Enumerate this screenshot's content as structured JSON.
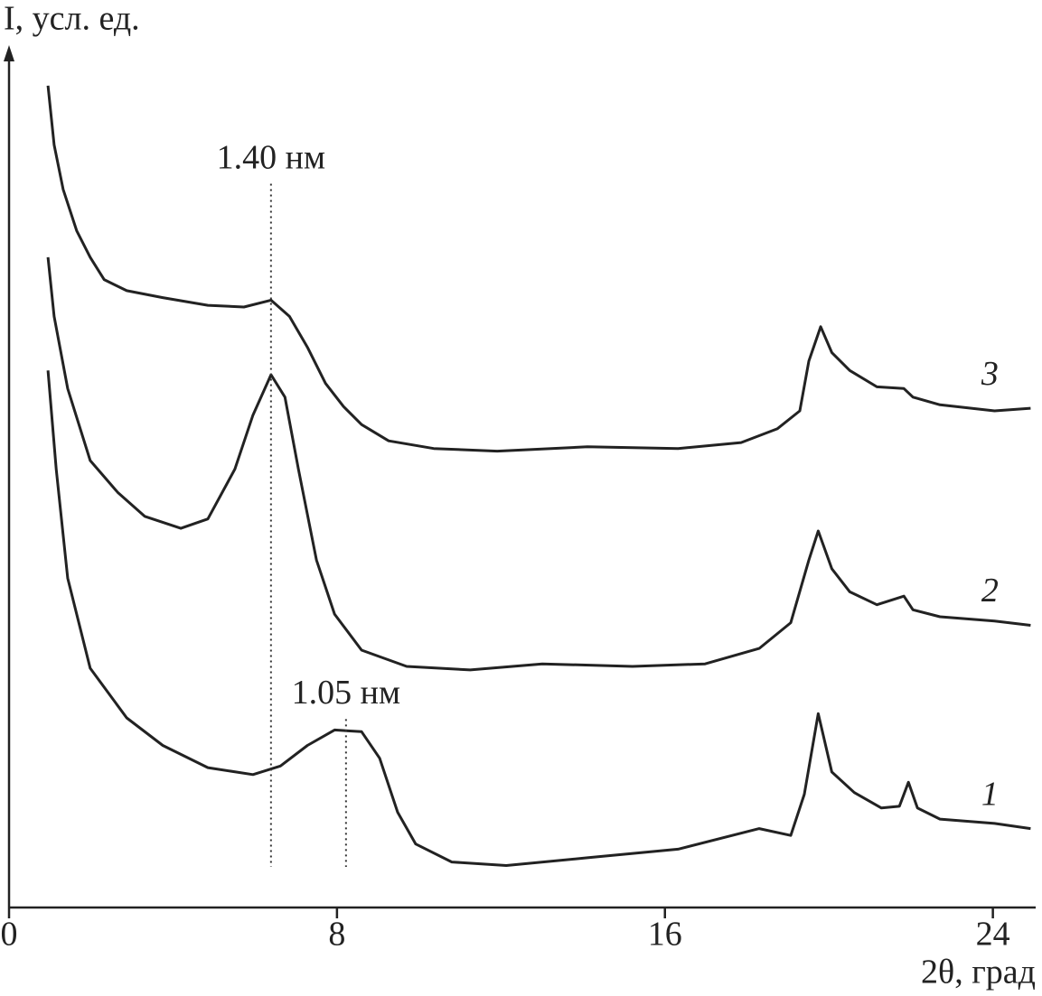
{
  "chart_data": {
    "type": "line",
    "x_label": "2θ, град",
    "y_label": "I, усл. ед.",
    "xlim": [
      0,
      25
    ],
    "xticks": [
      0,
      8,
      16,
      24
    ],
    "ylim": [
      0,
      100
    ],
    "series": [
      {
        "name": "3",
        "color": "#222222",
        "x": [
          0.95,
          1.1,
          1.32,
          1.65,
          1.98,
          2.32,
          2.87,
          3.75,
          4.85,
          5.73,
          6.39,
          6.84,
          7.28,
          7.72,
          8.16,
          8.6,
          9.26,
          10.36,
          11.91,
          14.11,
          16.32,
          17.86,
          18.74,
          19.29,
          19.51,
          19.8,
          20.07,
          20.51,
          21.17,
          21.83,
          22.05,
          22.71,
          24.04,
          24.92
        ],
        "values": [
          95.8,
          88.9,
          83.7,
          78.9,
          75.8,
          73.2,
          71.9,
          71.1,
          70.2,
          70.0,
          70.8,
          68.9,
          65.3,
          61.1,
          58.4,
          56.3,
          54.4,
          53.5,
          53.2,
          53.7,
          53.5,
          54.2,
          55.8,
          57.9,
          63.7,
          67.7,
          64.7,
          62.6,
          60.7,
          60.5,
          59.5,
          58.6,
          57.9,
          58.2
        ]
      },
      {
        "name": "2",
        "color": "#222222",
        "x": [
          0.95,
          1.1,
          1.43,
          1.98,
          2.65,
          3.31,
          4.19,
          4.85,
          5.51,
          5.95,
          6.39,
          6.73,
          7.06,
          7.5,
          7.94,
          8.6,
          9.7,
          11.25,
          13.01,
          15.21,
          16.98,
          18.3,
          19.07,
          19.51,
          19.74,
          20.07,
          20.51,
          21.17,
          21.83,
          22.05,
          22.71,
          24.04,
          24.92
        ],
        "values": [
          75.8,
          68.9,
          60.5,
          52.1,
          48.4,
          45.6,
          44.2,
          45.3,
          51.1,
          57.4,
          62.1,
          59.5,
          51.1,
          40.5,
          34.2,
          30.0,
          28.1,
          27.7,
          28.4,
          28.1,
          28.4,
          30.2,
          33.2,
          40.5,
          43.9,
          39.5,
          36.8,
          35.3,
          36.3,
          34.7,
          33.9,
          33.4,
          32.9
        ]
      },
      {
        "name": "1",
        "color": "#222222",
        "x": [
          0.95,
          1.15,
          1.43,
          1.98,
          2.87,
          3.75,
          4.85,
          5.95,
          6.62,
          7.28,
          7.94,
          8.6,
          9.04,
          9.48,
          9.92,
          10.8,
          12.13,
          14.11,
          16.32,
          18.3,
          19.07,
          19.4,
          19.74,
          20.07,
          20.62,
          21.28,
          21.72,
          21.94,
          22.16,
          22.71,
          24.04,
          24.92
        ],
        "values": [
          62.6,
          51.1,
          38.4,
          27.9,
          22.1,
          18.9,
          16.3,
          15.5,
          16.5,
          18.9,
          20.7,
          20.5,
          17.4,
          11.1,
          7.4,
          5.3,
          4.9,
          5.8,
          6.8,
          9.2,
          8.4,
          13.2,
          22.6,
          15.8,
          13.4,
          11.6,
          11.8,
          14.6,
          11.6,
          10.3,
          9.8,
          9.2
        ]
      }
    ],
    "annotations": [
      {
        "text": "1.40 нм",
        "x": 6.39,
        "y": 87.1
      },
      {
        "text": "1.05 нм",
        "x": 8.22,
        "y": 24.7
      }
    ]
  }
}
